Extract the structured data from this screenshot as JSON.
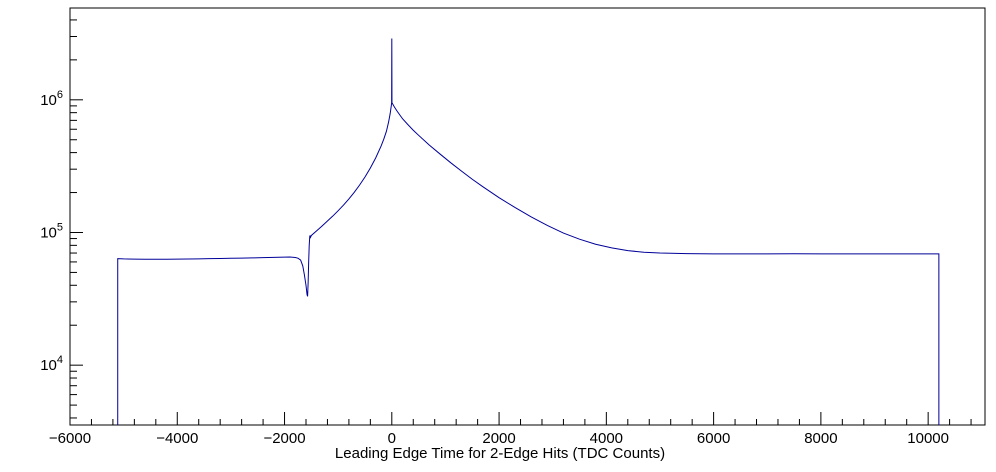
{
  "chart_data": {
    "type": "line",
    "title": "",
    "xlabel": "Leading Edge Time for 2-Edge Hits (TDC Counts)",
    "ylabel": "",
    "xlim": [
      -6000,
      11060
    ],
    "ylim": [
      3540,
      4920000
    ],
    "yscale": "log",
    "x_major_ticks": [
      -6000,
      -4000,
      -2000,
      0,
      2000,
      4000,
      6000,
      8000,
      10000
    ],
    "x_minor_step": 400,
    "y_major_ticks_exp": [
      4,
      5,
      6
    ],
    "grid": false,
    "legend": null,
    "line_color": "#000099",
    "frame_color": "#000000",
    "background": "#ffffff",
    "series": [
      {
        "name": "leading-edge-time-2edge-hits",
        "points": [
          [
            -5110,
            3540
          ],
          [
            -5110,
            63500
          ],
          [
            -5000,
            63200
          ],
          [
            -4800,
            63000
          ],
          [
            -4600,
            62800
          ],
          [
            -4400,
            62800
          ],
          [
            -4200,
            62900
          ],
          [
            -4000,
            63000
          ],
          [
            -3800,
            63100
          ],
          [
            -3600,
            63300
          ],
          [
            -3400,
            63500
          ],
          [
            -3200,
            63700
          ],
          [
            -3000,
            63900
          ],
          [
            -2800,
            64100
          ],
          [
            -2600,
            64300
          ],
          [
            -2400,
            64600
          ],
          [
            -2200,
            64900
          ],
          [
            -2000,
            65200
          ],
          [
            -1900,
            65300
          ],
          [
            -1800,
            64800
          ],
          [
            -1750,
            64000
          ],
          [
            -1700,
            62000
          ],
          [
            -1660,
            56000
          ],
          [
            -1630,
            48000
          ],
          [
            -1600,
            40000
          ],
          [
            -1580,
            34000
          ],
          [
            -1570,
            33000
          ],
          [
            -1560,
            42000
          ],
          [
            -1550,
            60000
          ],
          [
            -1540,
            80000
          ],
          [
            -1530,
            93000
          ],
          [
            -1525,
            95000
          ],
          [
            -1515,
            92000
          ],
          [
            -1500,
            95000
          ],
          [
            -1400,
            103000
          ],
          [
            -1300,
            112000
          ],
          [
            -1200,
            122000
          ],
          [
            -1100,
            133000
          ],
          [
            -1000,
            146000
          ],
          [
            -900,
            161000
          ],
          [
            -800,
            179000
          ],
          [
            -700,
            201000
          ],
          [
            -600,
            228000
          ],
          [
            -500,
            262000
          ],
          [
            -400,
            306000
          ],
          [
            -300,
            365000
          ],
          [
            -200,
            448000
          ],
          [
            -150,
            505000
          ],
          [
            -100,
            580000
          ],
          [
            -60,
            680000
          ],
          [
            -30,
            790000
          ],
          [
            -10,
            900000
          ],
          [
            -3,
            950000
          ],
          [
            0,
            2900000
          ],
          [
            3,
            950000
          ],
          [
            10,
            940000
          ],
          [
            50,
            880000
          ],
          [
            100,
            820000
          ],
          [
            200,
            720000
          ],
          [
            300,
            650000
          ],
          [
            400,
            590000
          ],
          [
            500,
            540000
          ],
          [
            700,
            455000
          ],
          [
            900,
            390000
          ],
          [
            1100,
            335000
          ],
          [
            1300,
            290000
          ],
          [
            1500,
            252000
          ],
          [
            1700,
            221000
          ],
          [
            2000,
            183000
          ],
          [
            2300,
            154000
          ],
          [
            2600,
            131000
          ],
          [
            2900,
            113000
          ],
          [
            3200,
            99000
          ],
          [
            3500,
            89000
          ],
          [
            3800,
            81500
          ],
          [
            4100,
            76500
          ],
          [
            4400,
            73000
          ],
          [
            4700,
            71000
          ],
          [
            5000,
            70000
          ],
          [
            5500,
            69300
          ],
          [
            6000,
            69000
          ],
          [
            6500,
            69000
          ],
          [
            7000,
            69000
          ],
          [
            7500,
            69100
          ],
          [
            8000,
            69000
          ],
          [
            8500,
            69000
          ],
          [
            9000,
            69000
          ],
          [
            9500,
            69000
          ],
          [
            10000,
            69000
          ],
          [
            10200,
            69000
          ],
          [
            10200,
            3540
          ]
        ]
      }
    ]
  }
}
